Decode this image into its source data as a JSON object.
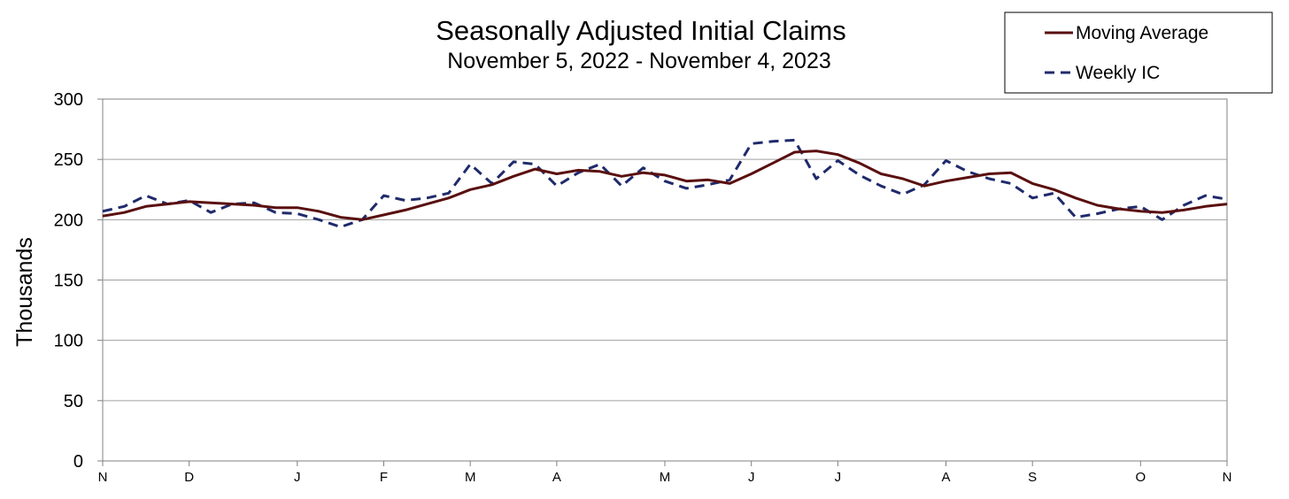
{
  "chart_data": {
    "type": "line",
    "title": "Seasonally Adjusted Initial Claims",
    "subtitle": "November 5, 2022 - November 4, 2023",
    "xlabel": "",
    "ylabel": "Thousands",
    "ylim": [
      0,
      300
    ],
    "yticks": [
      0,
      50,
      100,
      150,
      200,
      250,
      300
    ],
    "x_tick_labels": [
      "N",
      "D",
      "J",
      "F",
      "M",
      "A",
      "M",
      "J",
      "J",
      "A",
      "S",
      "O",
      "N"
    ],
    "x_tick_weeks": [
      0,
      4,
      9,
      13,
      17,
      21,
      26,
      30,
      34,
      39,
      43,
      48,
      52
    ],
    "grid": true,
    "legend_position": "top-right",
    "series": [
      {
        "name": "Moving Average",
        "color": "#5a0f0f",
        "style": "solid",
        "values": [
          203,
          206,
          211,
          213,
          215,
          214,
          213,
          212,
          210,
          210,
          207,
          202,
          200,
          204,
          208,
          213,
          218,
          225,
          229,
          236,
          242,
          238,
          241,
          240,
          236,
          239,
          237,
          232,
          233,
          230,
          238,
          247,
          256,
          257,
          254,
          247,
          238,
          234,
          228,
          232,
          235,
          238,
          239,
          230,
          225,
          218,
          212,
          209,
          207,
          206,
          208,
          211,
          213
        ]
      },
      {
        "name": "Weekly IC",
        "color": "#1f2a6b",
        "style": "dashed",
        "values": [
          207,
          211,
          220,
          213,
          216,
          206,
          213,
          214,
          206,
          205,
          200,
          194,
          200,
          220,
          216,
          218,
          222,
          246,
          230,
          248,
          246,
          228,
          239,
          246,
          228,
          243,
          232,
          226,
          229,
          233,
          263,
          265,
          266,
          234,
          249,
          237,
          228,
          221,
          229,
          249,
          240,
          234,
          230,
          218,
          222,
          202,
          205,
          209,
          211,
          200,
          212,
          220,
          217
        ]
      }
    ]
  }
}
